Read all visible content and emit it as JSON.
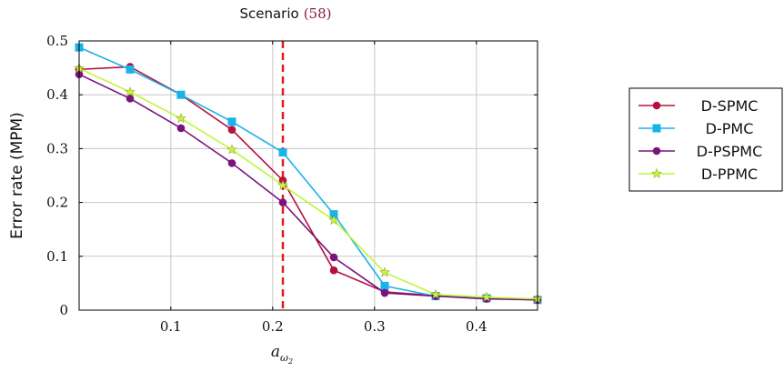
{
  "chart_data": {
    "type": "line",
    "title": "Scenario",
    "title_ref": "(58)",
    "xlabel": "a",
    "xlabel_subscript": "ω",
    "xlabel_subsubscript": "2",
    "ylabel": "Error rate (MPM)",
    "xlim": [
      0.01,
      0.46
    ],
    "ylim": [
      0,
      0.5
    ],
    "xticks": [
      0.1,
      0.2,
      0.3,
      0.4
    ],
    "xtick_labels": [
      "0.1",
      "0.2",
      "0.3",
      "0.4"
    ],
    "yticks": [
      0,
      0.1,
      0.2,
      0.3,
      0.4,
      0.5
    ],
    "ytick_labels": [
      "0",
      "0.1",
      "0.2",
      "0.3",
      "0.4",
      "0.5"
    ],
    "grid": true,
    "legend_position": "right",
    "vertical_line": {
      "x": 0.21,
      "color": "#e31a1c",
      "style": "dashed"
    },
    "x": [
      0.01,
      0.06,
      0.11,
      0.16,
      0.21,
      0.26,
      0.31,
      0.36,
      0.41,
      0.46
    ],
    "series": [
      {
        "name": "D-SPMC",
        "color": "#b5123e",
        "marker": "circle",
        "values": [
          0.447,
          0.452,
          0.4,
          0.335,
          0.241,
          0.074,
          0.034,
          0.027,
          0.022,
          0.019
        ]
      },
      {
        "name": "D-PMC",
        "color": "#1ab2e8",
        "marker": "square",
        "values": [
          0.488,
          0.447,
          0.4,
          0.35,
          0.293,
          0.178,
          0.045,
          0.026,
          0.022,
          0.019
        ]
      },
      {
        "name": "D-PSPMC",
        "color": "#7a137c",
        "marker": "circle",
        "values": [
          0.438,
          0.393,
          0.338,
          0.273,
          0.2,
          0.098,
          0.032,
          0.026,
          0.021,
          0.019
        ]
      },
      {
        "name": "D-PPMC",
        "color": "#bff73a",
        "marker": "star",
        "values": [
          0.449,
          0.405,
          0.356,
          0.298,
          0.232,
          0.167,
          0.07,
          0.029,
          0.024,
          0.021
        ]
      }
    ]
  }
}
